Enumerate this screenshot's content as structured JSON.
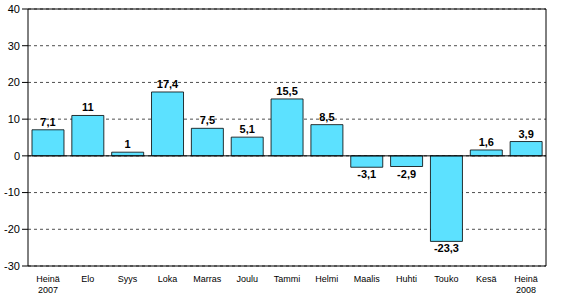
{
  "chart_data": {
    "type": "bar",
    "categories": [
      "Heinä 2007",
      "Elo",
      "Syys",
      "Loka",
      "Marras",
      "Joulu",
      "Tammi",
      "Helmi",
      "Maalis",
      "Huhti",
      "Touko",
      "Kesä",
      "Heinä 2008"
    ],
    "values": [
      7.1,
      11,
      1,
      17.4,
      7.5,
      5.1,
      15.5,
      8.5,
      -3.1,
      -2.9,
      -23.3,
      1.6,
      3.9
    ],
    "value_labels": [
      "7,1",
      "11",
      "1",
      "17,4",
      "7,5",
      "5,1",
      "15,5",
      "8,5",
      "-3,1",
      "-2,9",
      "-23,3",
      "1,6",
      "3,9"
    ],
    "color": "#5ce1ff",
    "ylim": [
      -30,
      40
    ],
    "yticks": [
      -30,
      -20,
      -10,
      0,
      10,
      20,
      30,
      40
    ],
    "grid": true,
    "data_labels": true
  }
}
